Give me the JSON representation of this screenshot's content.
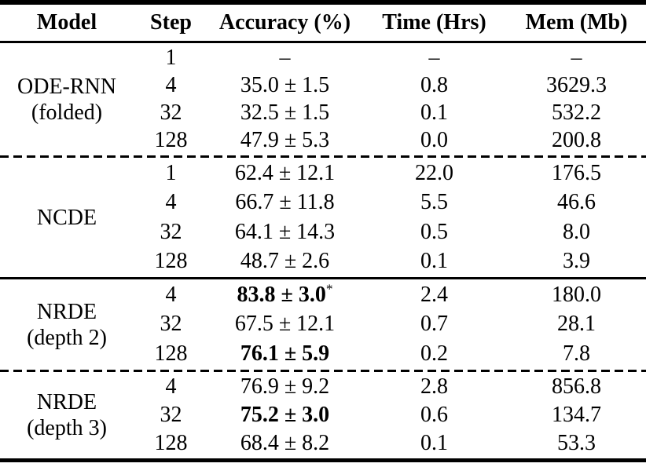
{
  "page": {
    "background": "#ffffff",
    "text_color": "#000000"
  },
  "table": {
    "columns": [
      "Model",
      "Step",
      "Accuracy (%)",
      "Time (Hrs)",
      "Mem (Mb)"
    ],
    "groups": [
      {
        "model_line1": "ODE-RNN",
        "model_line2": "(folded)",
        "divider_after": "dashed",
        "rows": [
          {
            "step": "1",
            "accuracy": "–",
            "star": "",
            "time": "–",
            "mem": "–",
            "emphasis": false
          },
          {
            "step": "4",
            "accuracy": "35.0 ± 1.5",
            "star": "",
            "time": "0.8",
            "mem": "3629.3",
            "emphasis": false
          },
          {
            "step": "32",
            "accuracy": "32.5 ± 1.5",
            "star": "",
            "time": "0.1",
            "mem": "532.2",
            "emphasis": false
          },
          {
            "step": "128",
            "accuracy": "47.9 ± 5.3",
            "star": "",
            "time": "0.0",
            "mem": "200.8",
            "emphasis": false
          }
        ]
      },
      {
        "model_line1": "NCDE",
        "model_line2": "",
        "divider_after": "solid",
        "rows": [
          {
            "step": "1",
            "accuracy": "62.4 ± 12.1",
            "star": "",
            "time": "22.0",
            "mem": "176.5",
            "emphasis": false
          },
          {
            "step": "4",
            "accuracy": "66.7 ± 11.8",
            "star": "",
            "time": "5.5",
            "mem": "46.6",
            "emphasis": false
          },
          {
            "step": "32",
            "accuracy": "64.1 ± 14.3",
            "star": "",
            "time": "0.5",
            "mem": "8.0",
            "emphasis": false
          },
          {
            "step": "128",
            "accuracy": "48.7 ± 2.6",
            "star": "",
            "time": "0.1",
            "mem": "3.9",
            "emphasis": false
          }
        ]
      },
      {
        "model_line1": "NRDE",
        "model_line2": "(depth 2)",
        "divider_after": "dashed",
        "rows": [
          {
            "step": "4",
            "accuracy": "83.8 ± 3.0",
            "star": "*",
            "time": "2.4",
            "mem": "180.0",
            "emphasis": true
          },
          {
            "step": "32",
            "accuracy": "67.5 ± 12.1",
            "star": "",
            "time": "0.7",
            "mem": "28.1",
            "emphasis": false
          },
          {
            "step": "128",
            "accuracy": "76.1 ± 5.9",
            "star": "",
            "time": "0.2",
            "mem": "7.8",
            "emphasis": true
          }
        ]
      },
      {
        "model_line1": "NRDE",
        "model_line2": "(depth 3)",
        "divider_after": "none",
        "rows": [
          {
            "step": "4",
            "accuracy": "76.9 ± 9.2",
            "star": "",
            "time": "2.8",
            "mem": "856.8",
            "emphasis": false
          },
          {
            "step": "32",
            "accuracy": "75.2 ± 3.0",
            "star": "",
            "time": "0.6",
            "mem": "134.7",
            "emphasis": true
          },
          {
            "step": "128",
            "accuracy": "68.4 ± 8.2",
            "star": "",
            "time": "0.1",
            "mem": "53.3",
            "emphasis": false
          }
        ]
      }
    ]
  }
}
